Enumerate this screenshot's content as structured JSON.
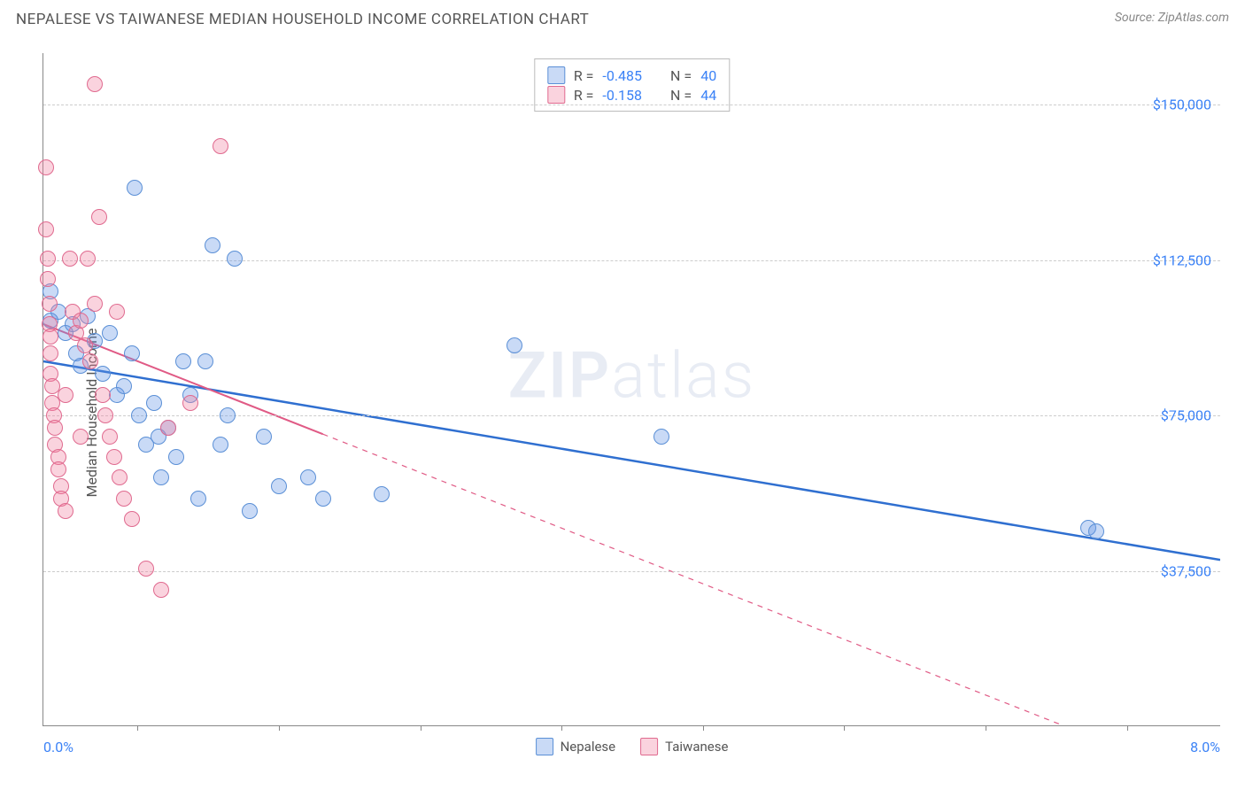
{
  "header": {
    "title": "NEPALESE VS TAIWANESE MEDIAN HOUSEHOLD INCOME CORRELATION CHART",
    "source": "Source: ZipAtlas.com"
  },
  "chart": {
    "type": "scatter",
    "ylabel": "Median Household Income",
    "xlim": [
      0,
      8
    ],
    "ylim": [
      0,
      162500
    ],
    "xlabel_min": "0.0%",
    "xlabel_max": "8.0%",
    "xtick_positions_pct": [
      8,
      20,
      32,
      44,
      56,
      68,
      80,
      92
    ],
    "y_gridlines": [
      {
        "value": 37500,
        "label": "$37,500"
      },
      {
        "value": 75000,
        "label": "$75,000"
      },
      {
        "value": 112500,
        "label": "$112,500"
      },
      {
        "value": 150000,
        "label": "$150,000"
      }
    ],
    "watermark": {
      "part1": "ZIP",
      "part2": "atlas"
    },
    "series": [
      {
        "name": "Nepalese",
        "fill": "rgba(100,150,230,0.35)",
        "stroke": "#5a8fd6",
        "marker_radius": 9,
        "R": "-0.485",
        "N": "40",
        "trend": {
          "x1": 0,
          "y1": 88000,
          "x2": 8,
          "y2": 40000,
          "solid_until_x": 8,
          "stroke": "#2f6fd0",
          "width": 2.5
        },
        "points": [
          {
            "x": 0.05,
            "y": 105000
          },
          {
            "x": 0.05,
            "y": 98000
          },
          {
            "x": 0.1,
            "y": 100000
          },
          {
            "x": 0.15,
            "y": 95000
          },
          {
            "x": 0.2,
            "y": 97000
          },
          {
            "x": 0.22,
            "y": 90000
          },
          {
            "x": 0.25,
            "y": 87000
          },
          {
            "x": 0.3,
            "y": 99000
          },
          {
            "x": 0.35,
            "y": 93000
          },
          {
            "x": 0.4,
            "y": 85000
          },
          {
            "x": 0.45,
            "y": 95000
          },
          {
            "x": 0.5,
            "y": 80000
          },
          {
            "x": 0.55,
            "y": 82000
          },
          {
            "x": 0.6,
            "y": 90000
          },
          {
            "x": 0.62,
            "y": 130000
          },
          {
            "x": 0.65,
            "y": 75000
          },
          {
            "x": 0.7,
            "y": 68000
          },
          {
            "x": 0.75,
            "y": 78000
          },
          {
            "x": 0.78,
            "y": 70000
          },
          {
            "x": 0.8,
            "y": 60000
          },
          {
            "x": 0.85,
            "y": 72000
          },
          {
            "x": 0.9,
            "y": 65000
          },
          {
            "x": 0.95,
            "y": 88000
          },
          {
            "x": 1.0,
            "y": 80000
          },
          {
            "x": 1.05,
            "y": 55000
          },
          {
            "x": 1.1,
            "y": 88000
          },
          {
            "x": 1.15,
            "y": 116000
          },
          {
            "x": 1.2,
            "y": 68000
          },
          {
            "x": 1.25,
            "y": 75000
          },
          {
            "x": 1.3,
            "y": 113000
          },
          {
            "x": 1.4,
            "y": 52000
          },
          {
            "x": 1.5,
            "y": 70000
          },
          {
            "x": 1.6,
            "y": 58000
          },
          {
            "x": 1.8,
            "y": 60000
          },
          {
            "x": 1.9,
            "y": 55000
          },
          {
            "x": 2.3,
            "y": 56000
          },
          {
            "x": 3.2,
            "y": 92000
          },
          {
            "x": 4.2,
            "y": 70000
          },
          {
            "x": 7.1,
            "y": 48000
          },
          {
            "x": 7.15,
            "y": 47000
          }
        ]
      },
      {
        "name": "Taiwanese",
        "fill": "rgba(240,130,160,0.35)",
        "stroke": "#e06a8f",
        "marker_radius": 9,
        "R": "-0.158",
        "N": "44",
        "trend": {
          "x1": 0,
          "y1": 97000,
          "x2": 8,
          "y2": -15000,
          "solid_until_x": 1.9,
          "stroke": "#e05a85",
          "width": 2
        },
        "points": [
          {
            "x": 0.02,
            "y": 135000
          },
          {
            "x": 0.02,
            "y": 120000
          },
          {
            "x": 0.03,
            "y": 113000
          },
          {
            "x": 0.03,
            "y": 108000
          },
          {
            "x": 0.04,
            "y": 102000
          },
          {
            "x": 0.04,
            "y": 97000
          },
          {
            "x": 0.05,
            "y": 94000
          },
          {
            "x": 0.05,
            "y": 90000
          },
          {
            "x": 0.05,
            "y": 85000
          },
          {
            "x": 0.06,
            "y": 82000
          },
          {
            "x": 0.06,
            "y": 78000
          },
          {
            "x": 0.07,
            "y": 75000
          },
          {
            "x": 0.08,
            "y": 72000
          },
          {
            "x": 0.08,
            "y": 68000
          },
          {
            "x": 0.1,
            "y": 65000
          },
          {
            "x": 0.1,
            "y": 62000
          },
          {
            "x": 0.12,
            "y": 58000
          },
          {
            "x": 0.12,
            "y": 55000
          },
          {
            "x": 0.15,
            "y": 52000
          },
          {
            "x": 0.18,
            "y": 113000
          },
          {
            "x": 0.2,
            "y": 100000
          },
          {
            "x": 0.22,
            "y": 95000
          },
          {
            "x": 0.25,
            "y": 98000
          },
          {
            "x": 0.28,
            "y": 92000
          },
          {
            "x": 0.3,
            "y": 113000
          },
          {
            "x": 0.32,
            "y": 88000
          },
          {
            "x": 0.35,
            "y": 102000
          },
          {
            "x": 0.35,
            "y": 155000
          },
          {
            "x": 0.38,
            "y": 123000
          },
          {
            "x": 0.4,
            "y": 80000
          },
          {
            "x": 0.42,
            "y": 75000
          },
          {
            "x": 0.45,
            "y": 70000
          },
          {
            "x": 0.48,
            "y": 65000
          },
          {
            "x": 0.5,
            "y": 100000
          },
          {
            "x": 0.52,
            "y": 60000
          },
          {
            "x": 0.55,
            "y": 55000
          },
          {
            "x": 0.6,
            "y": 50000
          },
          {
            "x": 0.7,
            "y": 38000
          },
          {
            "x": 0.8,
            "y": 33000
          },
          {
            "x": 0.85,
            "y": 72000
          },
          {
            "x": 1.0,
            "y": 78000
          },
          {
            "x": 1.2,
            "y": 140000
          },
          {
            "x": 0.15,
            "y": 80000
          },
          {
            "x": 0.25,
            "y": 70000
          }
        ]
      }
    ]
  }
}
